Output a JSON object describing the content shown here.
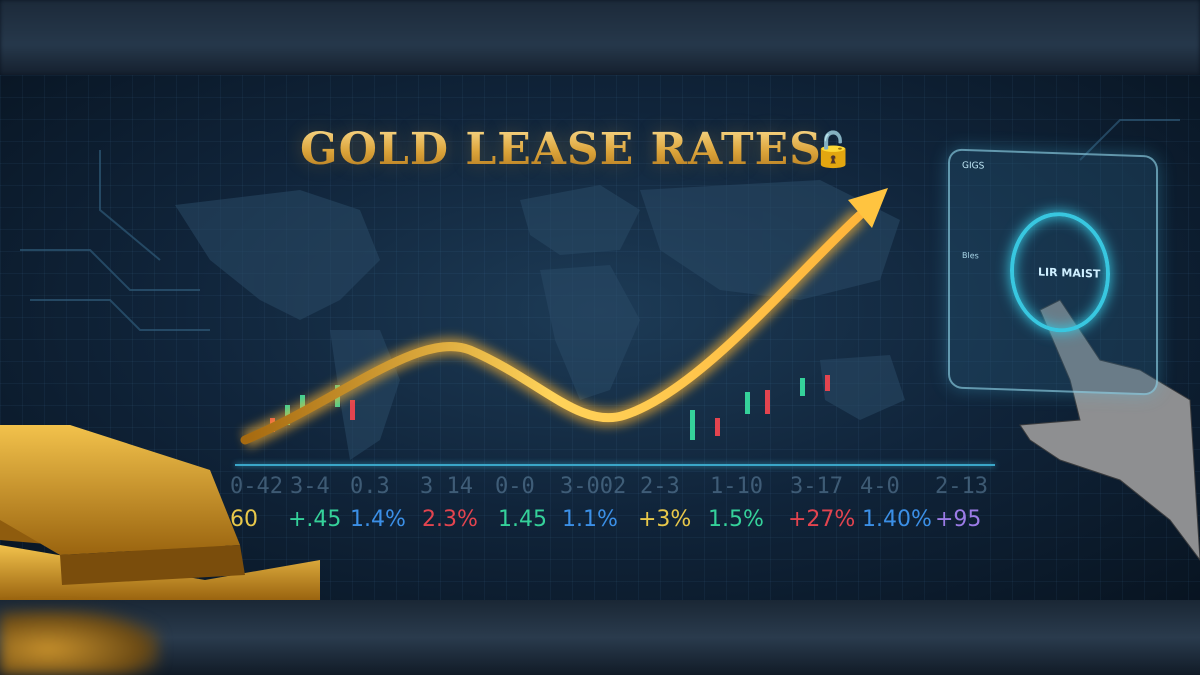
{
  "title": "GOLD LEASE RATES",
  "title_icon": "lock-with-up-arrow-icon",
  "colors": {
    "gold": "#e9b84a",
    "green": "#35d19a",
    "blue": "#3b8fe6",
    "red": "#e3444f",
    "yellow": "#e8c84a",
    "purple": "#9b7be6",
    "cyan": "#3aa6c8"
  },
  "ticker_top": [
    "0-42",
    "3-4",
    "0.3",
    "3 14",
    "0-0",
    "3-002",
    "2-3",
    "1-10",
    "3-17",
    "4-0",
    "2-13"
  ],
  "ticker_bottom": [
    {
      "text": "60",
      "color": "#e8c84a"
    },
    {
      "text": "+.45",
      "color": "#35d19a"
    },
    {
      "text": "1.4%",
      "color": "#3b8fe6"
    },
    {
      "text": "2.3%",
      "color": "#e3444f"
    },
    {
      "text": "1.45",
      "color": "#35d19a"
    },
    {
      "text": "1.1%",
      "color": "#3b8fe6"
    },
    {
      "text": "+3%",
      "color": "#e8c84a"
    },
    {
      "text": "1.5%",
      "color": "#35d19a"
    },
    {
      "text": "+27%",
      "color": "#e3444f"
    },
    {
      "text": "1.40%",
      "color": "#3b8fe6"
    },
    {
      "text": "+95",
      "color": "#9b7be6"
    }
  ],
  "hologram": {
    "center_label": "LIR MAIST",
    "header": "GIGS",
    "side_label": "Bles"
  }
}
